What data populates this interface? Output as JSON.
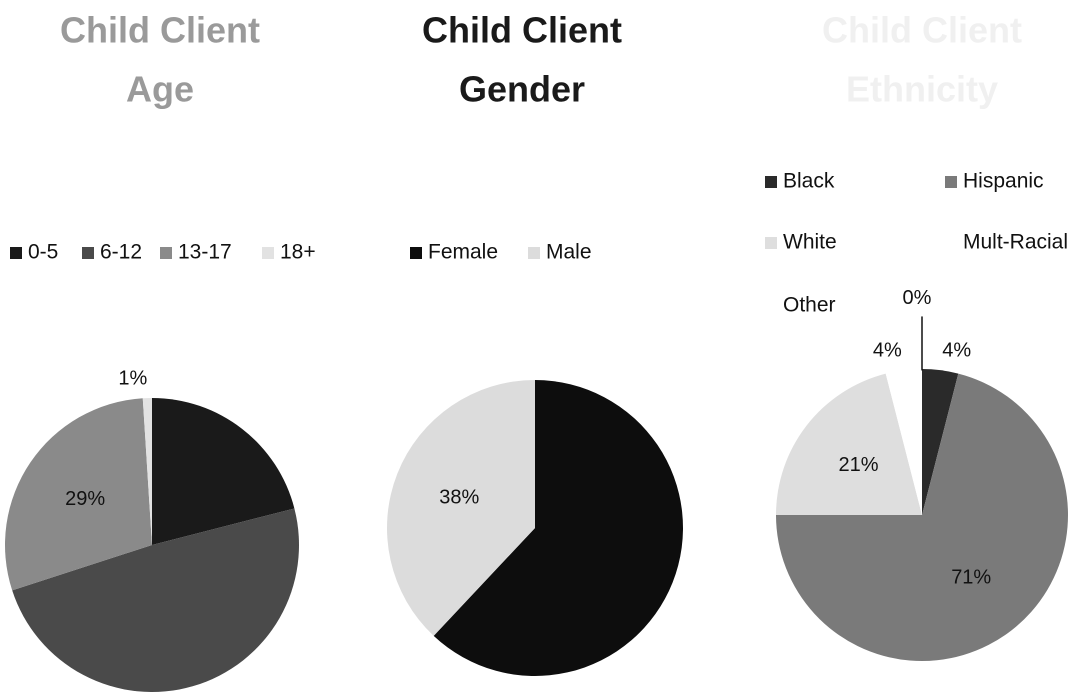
{
  "chart_data": [
    {
      "type": "pie",
      "title": [
        "Child Client",
        "Age"
      ],
      "title_color": "#9a9a9a",
      "categories": [
        "0-5",
        "6-12",
        "13-17",
        "18+"
      ],
      "values": [
        21,
        49,
        29,
        1
      ],
      "value_labels": [
        null,
        null,
        "29%",
        "1%"
      ],
      "colors": [
        "#1a1a1a",
        "#4a4a4a",
        "#8a8a8a",
        "#e2e2e2"
      ]
    },
    {
      "type": "pie",
      "title": [
        "Child Client",
        "Gender"
      ],
      "title_color": "#1a1a1a",
      "categories": [
        "Female",
        "Male"
      ],
      "values": [
        62,
        38
      ],
      "value_labels": [
        null,
        "38%"
      ],
      "colors": [
        "#0d0d0d",
        "#dcdcdc"
      ]
    },
    {
      "type": "pie",
      "title": [
        "Child Client",
        "Ethnicity"
      ],
      "title_color": "#f0f0f0",
      "categories": [
        "Black",
        "Hispanic",
        "White",
        "Mult-Racial",
        "Other"
      ],
      "values": [
        4,
        71,
        21,
        4,
        0
      ],
      "value_labels": [
        "4%",
        "71%",
        "21%",
        "4%",
        "0%"
      ],
      "colors": [
        "#2a2a2a",
        "#7a7a7a",
        "#dedede",
        "#ffffff",
        "#ffffff"
      ]
    }
  ]
}
